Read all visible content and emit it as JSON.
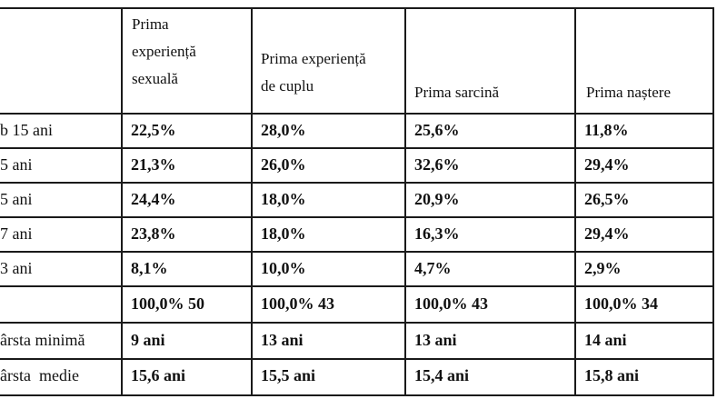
{
  "table": {
    "headers": [
      [
        "Prima",
        "experiență",
        "sexuală"
      ],
      [
        "Prima experiență",
        "de cuplu"
      ],
      [
        "Prima sarcină"
      ],
      [
        "Prima naștere"
      ]
    ],
    "rows": [
      {
        "label": "b 15 ani",
        "cells": [
          "22,5%",
          "28,0%",
          "25,6%",
          "11,8%"
        ]
      },
      {
        "label": "5 ani",
        "cells": [
          "21,3%",
          "26,0%",
          "32,6%",
          "29,4%"
        ]
      },
      {
        "label": "5 ani",
        "cells": [
          "24,4%",
          "18,0%",
          "20,9%",
          "26,5%"
        ]
      },
      {
        "label": "7 ani",
        "cells": [
          "23,8%",
          "18,0%",
          "16,3%",
          "29,4%"
        ]
      },
      {
        "label": "3 ani",
        "cells": [
          "8,1%",
          "10,0%",
          "4,7%",
          "2,9%"
        ]
      },
      {
        "label": "",
        "cells": [
          "100,0% 50",
          "100,0% 43",
          "100,0% 43",
          "100,0% 34"
        ]
      },
      {
        "label": "ârsta minimă",
        "cells": [
          "9 ani",
          "13 ani",
          "13 ani",
          "14 ani"
        ]
      },
      {
        "label": "ârsta  medie",
        "cells": [
          "15,6 ani",
          "15,5 ani",
          "15,4 ani",
          "15,8 ani"
        ]
      }
    ]
  }
}
